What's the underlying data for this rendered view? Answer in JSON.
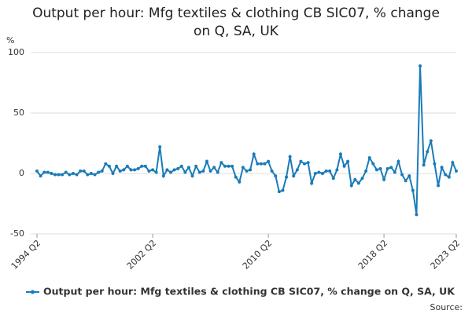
{
  "chart_data": {
    "type": "line",
    "title": "Output per hour: Mfg textiles & clothing CB SIC07, % change on Q, SA, UK",
    "y_label": "%",
    "source": "Source:",
    "categories": [
      "1994 Q2",
      null,
      null,
      null,
      null,
      null,
      null,
      null,
      null,
      null,
      null,
      null,
      null,
      null,
      null,
      null,
      null,
      null,
      null,
      null,
      null,
      null,
      null,
      null,
      null,
      null,
      null,
      null,
      null,
      null,
      null,
      null,
      "2002 Q2",
      null,
      null,
      null,
      null,
      null,
      null,
      null,
      null,
      null,
      null,
      null,
      null,
      null,
      null,
      null,
      null,
      null,
      null,
      null,
      null,
      null,
      null,
      null,
      null,
      null,
      null,
      null,
      null,
      null,
      null,
      null,
      "2010 Q2",
      null,
      null,
      null,
      null,
      null,
      null,
      null,
      null,
      null,
      null,
      null,
      null,
      null,
      null,
      null,
      null,
      null,
      null,
      null,
      null,
      null,
      null,
      null,
      null,
      null,
      null,
      null,
      null,
      null,
      null,
      null,
      "2018 Q2",
      null,
      null,
      null,
      null,
      null,
      null,
      null,
      null,
      null,
      null,
      null,
      null,
      null,
      null,
      null,
      null,
      null,
      null,
      null,
      "2023 Q2"
    ],
    "series": [
      {
        "name": "Output per hour: Mfg textiles & clothing CB SIC07, % change on Q, SA, UK",
        "color": "#1a7bb9",
        "values": [
          2,
          -2,
          1,
          1,
          0,
          -1,
          -1,
          -1,
          1,
          -1,
          0,
          -1,
          2,
          2,
          -1,
          0,
          -1,
          1,
          2,
          8,
          6,
          0,
          6,
          2,
          3,
          6,
          3,
          3,
          4,
          6,
          6,
          2,
          3,
          1,
          22,
          -2,
          3,
          1,
          3,
          4,
          6,
          1,
          5,
          -2,
          6,
          1,
          2,
          10,
          2,
          5,
          1,
          9,
          6,
          6,
          6,
          -3,
          -7,
          5,
          2,
          3,
          16,
          8,
          8,
          8,
          10,
          2,
          -2,
          -15,
          -14,
          -3,
          14,
          -2,
          3,
          10,
          8,
          9,
          -8,
          0,
          1,
          0,
          2,
          2,
          -4,
          3,
          16,
          6,
          10,
          -10,
          -5,
          -8,
          -4,
          2,
          13,
          8,
          3,
          4,
          -5,
          4,
          5,
          1,
          10,
          -1,
          -6,
          -2,
          -14,
          -34,
          89,
          7,
          18,
          27,
          8,
          -10,
          5,
          -1,
          -3,
          9,
          2
        ]
      }
    ],
    "ylim": [
      -50,
      100
    ],
    "yticks": [
      -50,
      0,
      50,
      100
    ],
    "grid": true
  }
}
